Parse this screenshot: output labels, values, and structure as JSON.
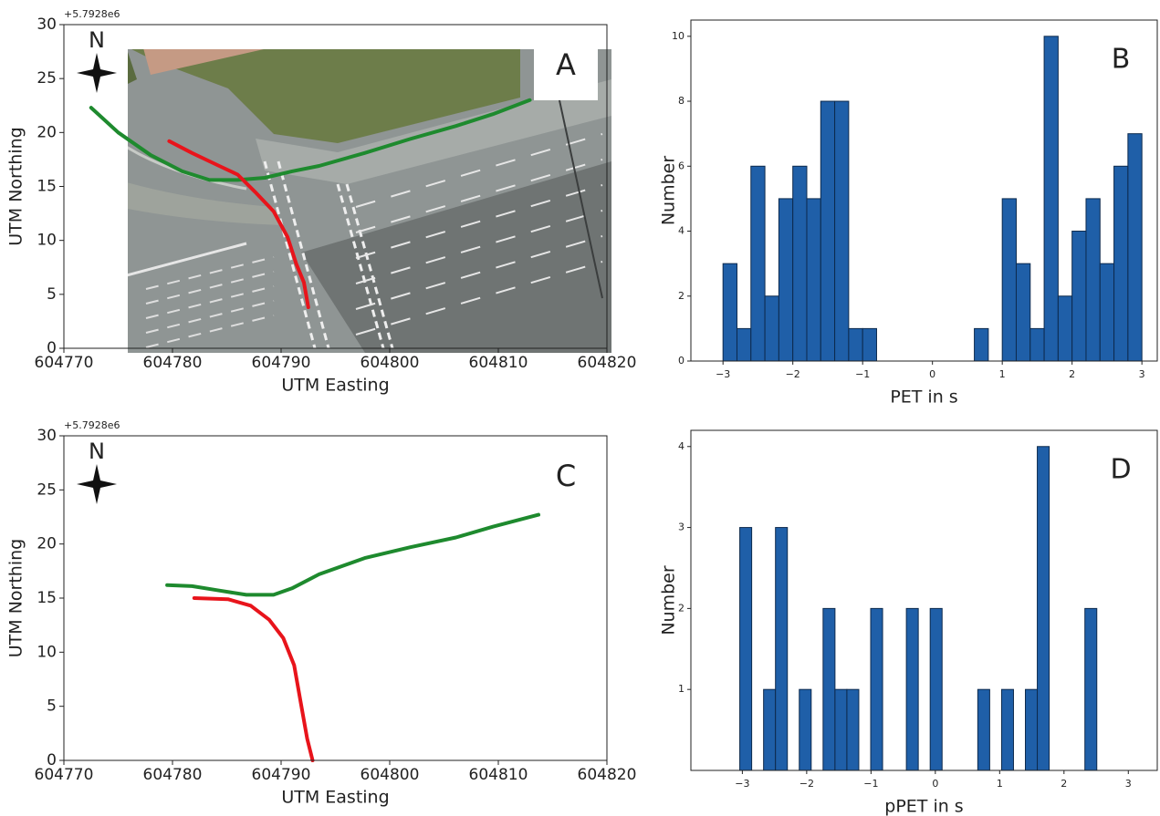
{
  "chart_data": [
    {
      "type": "line",
      "offset_text": "+5.7928e6",
      "compass": "N",
      "panel_label": "A",
      "xlabel": "UTM Easting",
      "ylabel": "UTM Northing",
      "xlim": [
        604770,
        604820
      ],
      "ylim": [
        0,
        30
      ],
      "xticks": [
        604770,
        604780,
        604790,
        604800,
        604810,
        604820
      ],
      "yticks": [
        0,
        5,
        10,
        15,
        20,
        25,
        30
      ],
      "series": [
        {
          "color": "#1e8a2e",
          "x": [
            604772.5,
            604775.0,
            604778.0,
            604780.9,
            604783.4,
            604786.0,
            604788.5,
            604791.0,
            604793.5,
            604797.7,
            604801.9,
            604806.1,
            604809.5,
            604812.9
          ],
          "values": [
            22.3,
            20.0,
            17.9,
            16.4,
            15.6,
            15.6,
            15.8,
            16.4,
            16.9,
            18.1,
            19.4,
            20.6,
            21.7,
            23.0
          ]
        },
        {
          "color": "#e8141b",
          "x": [
            604779.7,
            604781.8,
            604784.3,
            604786.0,
            604787.6,
            604789.3,
            604790.6,
            604791.4,
            604792.1,
            604792.5
          ],
          "values": [
            19.2,
            18.1,
            16.9,
            16.1,
            14.5,
            12.7,
            10.3,
            7.8,
            6.1,
            3.8
          ]
        }
      ]
    },
    {
      "type": "histogram",
      "panel_label": "B",
      "xlabel": "PET in s",
      "ylabel": "Number",
      "xlim": [
        -3.46,
        3.22
      ],
      "ylim": [
        0,
        10.5
      ],
      "xticks": [
        {
          "value": -3,
          "label": "−3"
        },
        {
          "value": -2,
          "label": "−2"
        },
        {
          "value": -1,
          "label": "−1"
        },
        0,
        1,
        2,
        3
      ],
      "yticks": [
        0,
        2,
        4,
        6,
        8,
        10
      ],
      "color": "#1f5fa8",
      "bins": [
        -3.0,
        -2.8,
        -2.6,
        -2.4,
        -2.2,
        -2.0,
        -1.8,
        -1.6,
        -1.4,
        -1.2,
        -1.0,
        -0.8,
        -0.6,
        -0.4,
        -0.2,
        0.0,
        0.2,
        0.4,
        0.6,
        0.8,
        1.0,
        1.2,
        1.4,
        1.6,
        1.8,
        2.0,
        2.2,
        2.4,
        2.6,
        2.8,
        3.0
      ],
      "values": [
        3,
        1,
        6,
        2,
        5,
        6,
        5,
        8,
        8,
        1,
        1,
        0,
        0,
        0,
        0,
        0,
        0,
        0,
        1,
        0,
        5,
        3,
        1,
        10,
        2,
        4,
        5,
        3,
        6,
        7
      ]
    },
    {
      "type": "line",
      "offset_text": "+5.7928e6",
      "compass": "N",
      "panel_label": "C",
      "xlabel": "UTM Easting",
      "ylabel": "UTM Northing",
      "xlim": [
        604770,
        604820
      ],
      "ylim": [
        0,
        30
      ],
      "xticks": [
        604770,
        604780,
        604790,
        604800,
        604810,
        604820
      ],
      "yticks": [
        0,
        5,
        10,
        15,
        20,
        25,
        30
      ],
      "series": [
        {
          "color": "#1e8a2e",
          "x": [
            604779.5,
            604781.8,
            604784.3,
            604786.8,
            604789.3,
            604791.0,
            604793.5,
            604797.7,
            604801.9,
            604806.1,
            604809.5,
            604813.7
          ],
          "values": [
            16.2,
            16.1,
            15.7,
            15.3,
            15.3,
            15.9,
            17.2,
            18.7,
            19.7,
            20.6,
            21.6,
            22.7
          ]
        },
        {
          "color": "#e8141b",
          "x": [
            604782.0,
            604785.1,
            604787.2,
            604788.9,
            604790.2,
            604791.2,
            604791.8,
            604792.4,
            604792.9
          ],
          "values": [
            15.0,
            14.9,
            14.3,
            13.0,
            11.3,
            8.8,
            5.4,
            2.0,
            0
          ]
        }
      ]
    },
    {
      "type": "histogram",
      "panel_label": "D",
      "xlabel": "pPET in s",
      "ylabel": "Number",
      "xlim": [
        -3.8,
        3.45
      ],
      "ylim": [
        0,
        4.2
      ],
      "xticks": [
        {
          "value": -3,
          "label": "−3"
        },
        {
          "value": -2,
          "label": "−2"
        },
        {
          "value": -1,
          "label": "−1"
        },
        0,
        1,
        2,
        3
      ],
      "yticks": [
        1,
        2,
        3,
        4
      ],
      "color": "#1f5fa8",
      "bins": [
        -3.04,
        -2.855,
        -2.67,
        -2.485,
        -2.3,
        -2.115,
        -1.93,
        -1.745,
        -1.56,
        -1.375,
        -1.19,
        -1.005,
        -0.82,
        -0.635,
        -0.45,
        -0.265,
        -0.08,
        0.105,
        0.29,
        0.475,
        0.66,
        0.845,
        1.03,
        1.215,
        1.4,
        1.585,
        1.77,
        1.955,
        2.14,
        2.325,
        2.51
      ],
      "values": [
        3,
        0,
        1,
        3,
        0,
        1,
        0,
        2,
        1,
        1,
        0,
        2,
        0,
        0,
        2,
        0,
        2,
        0,
        0,
        0,
        1,
        0,
        1,
        0,
        1,
        4,
        0,
        0,
        0,
        2
      ]
    }
  ]
}
